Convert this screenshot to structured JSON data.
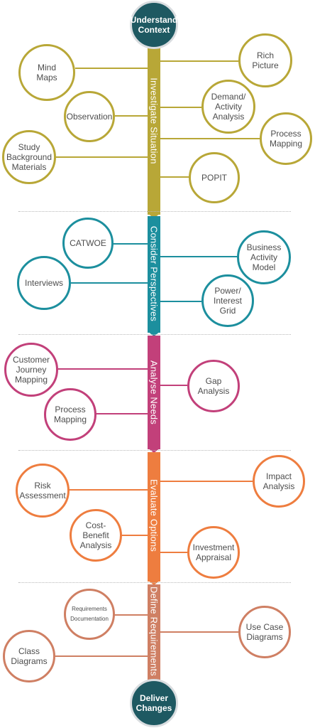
{
  "start": "Understand\nContext",
  "end": "Deliver\nChanges",
  "stages": [
    {
      "label": "Investigate Situation",
      "color": "#b8a737",
      "nodes": [
        "Mind\nMaps",
        "Rich\nPicture",
        "Demand/\nActivity\nAnalysis",
        "Observation",
        "Process\nMapping",
        "Study\nBackground\nMaterials",
        "POPIT"
      ]
    },
    {
      "label": "Consider Perspectives",
      "color": "#1c8f9e",
      "nodes": [
        "CATWOE",
        "Business\nActivity\nModel",
        "Interviews",
        "Power/\nInterest\nGrid"
      ]
    },
    {
      "label": "Analyse Needs",
      "color": "#c2407a",
      "nodes": [
        "Customer\nJourney\nMapping",
        "Gap\nAnalysis",
        "Process\nMapping"
      ]
    },
    {
      "label": "Evaluate Options",
      "color": "#ee7d3f",
      "nodes": [
        "Impact\nAnalysis",
        "Risk\nAssessment",
        "Cost-\nBenefit\nAnalysis",
        "Investment\nAppraisal"
      ]
    },
    {
      "label": "Define Requirements",
      "color": "#cf7f63",
      "nodes": [
        "Requirements\nDocumentation",
        "Use Case\nDiagrams",
        "Class\nDiagrams"
      ]
    }
  ]
}
